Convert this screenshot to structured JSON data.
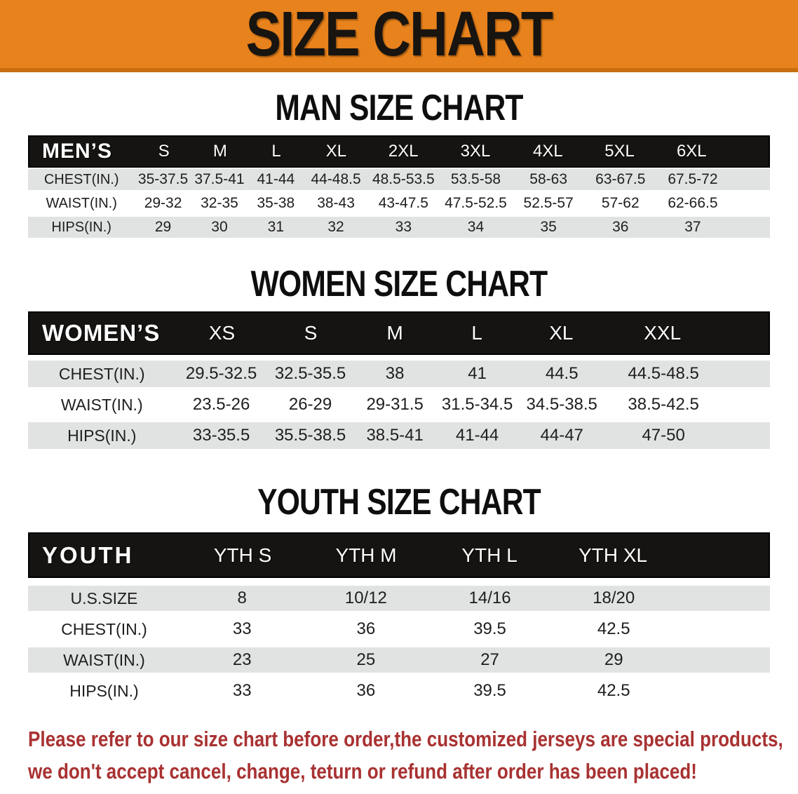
{
  "banner": {
    "title": "SIZE CHART",
    "bg_color": "#E8821C",
    "text_color": "#181410"
  },
  "sections": [
    {
      "heading": "MAN SIZE CHART",
      "table": {
        "label": "MEN’S",
        "sizes": [
          "S",
          "M",
          "L",
          "XL",
          "2XL",
          "3XL",
          "4XL",
          "5XL",
          "6XL"
        ],
        "rows": [
          {
            "label": "CHEST(IN.)",
            "values": [
              "35-37.5",
              "37.5-41",
              "41-44",
              "44-48.5",
              "48.5-53.5",
              "53.5-58",
              "58-63",
              "63-67.5",
              "67.5-72"
            ]
          },
          {
            "label": "WAIST(IN.)",
            "values": [
              "29-32",
              "32-35",
              "35-38",
              "38-43",
              "43-47.5",
              "47.5-52.5",
              "52.5-57",
              "57-62",
              "62-66.5"
            ]
          },
          {
            "label": "HIPS(IN.)",
            "values": [
              "29",
              "30",
              "31",
              "32",
              "33",
              "34",
              "35",
              "36",
              "37"
            ]
          }
        ]
      }
    },
    {
      "heading": "WOMEN SIZE CHART",
      "table": {
        "label": "WOMEN’S",
        "sizes": [
          "XS",
          "S",
          "M",
          "L",
          "XL",
          "XXL"
        ],
        "rows": [
          {
            "label": "CHEST(IN.)",
            "values": [
              "29.5-32.5",
              "32.5-35.5",
              "38",
              "41",
              "44.5",
              "44.5-48.5"
            ]
          },
          {
            "label": "WAIST(IN.)",
            "values": [
              "23.5-26",
              "26-29",
              "29-31.5",
              "31.5-34.5",
              "34.5-38.5",
              "38.5-42.5"
            ]
          },
          {
            "label": "HIPS(IN.)",
            "values": [
              "33-35.5",
              "35.5-38.5",
              "38.5-41",
              "41-44",
              "44-47",
              "47-50"
            ]
          }
        ]
      }
    },
    {
      "heading": "YOUTH SIZE CHART",
      "table": {
        "label": "YOUTH",
        "sizes": [
          "YTH S",
          "YTH M",
          "YTH L",
          "YTH XL"
        ],
        "rows": [
          {
            "label": "U.S.SIZE",
            "values": [
              "8",
              "10/12",
              "14/16",
              "18/20"
            ]
          },
          {
            "label": "CHEST(IN.)",
            "values": [
              "33",
              "36",
              "39.5",
              "42.5"
            ]
          },
          {
            "label": "WAIST(IN.)",
            "values": [
              "23",
              "25",
              "27",
              "29"
            ]
          },
          {
            "label": "HIPS(IN.)",
            "values": [
              "33",
              "36",
              "39.5",
              "42.5"
            ]
          }
        ]
      }
    }
  ],
  "disclaimer": {
    "line1": "Please refer to our size chart before order,the customized jerseys are special products,",
    "line2": "we don't accept cancel, change, teturn or refund after order has been placed!",
    "color": "#A93232"
  }
}
